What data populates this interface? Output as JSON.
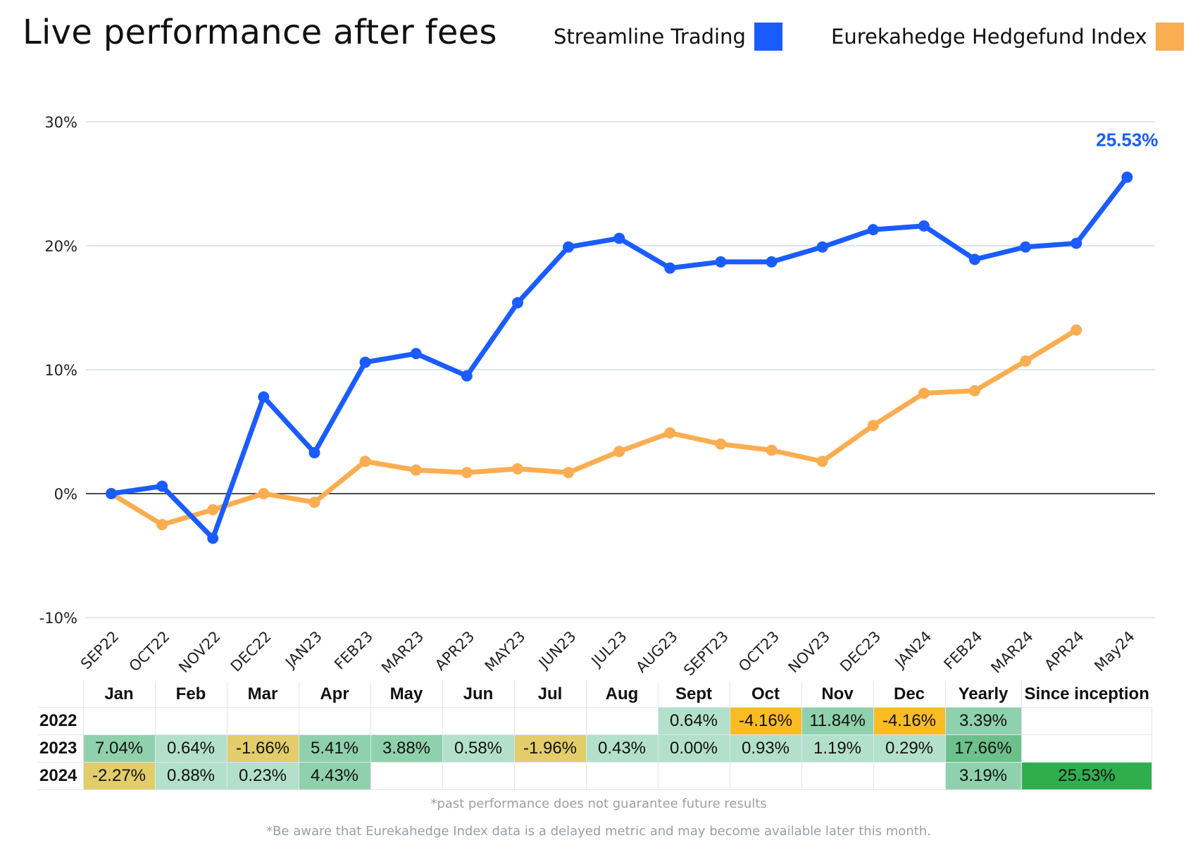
{
  "header": {
    "title": "Live performance after fees"
  },
  "legend": [
    {
      "label": "Streamline Trading",
      "color": "#1a5cff"
    },
    {
      "label": "Eurekahedge Hedgefund Index",
      "color": "#fbad52"
    }
  ],
  "chart_data": {
    "type": "line",
    "title": "Live performance after fees",
    "x": [
      "SEP22",
      "OCT22",
      "NOV22",
      "DEC22",
      "JAN23",
      "FEB23",
      "MAR23",
      "APR23",
      "MAY23",
      "JUN23",
      "JUL23",
      "AUG23",
      "SEPT23",
      "OCT23",
      "NOV23",
      "DEC23",
      "JAN24",
      "FEB24",
      "MAR24",
      "APR24",
      "May24"
    ],
    "y_ticks": [
      "30%",
      "20%",
      "10%",
      "0%",
      "-10%"
    ],
    "y_tick_values": [
      30,
      20,
      10,
      0,
      -10
    ],
    "ylim": [
      -10,
      30
    ],
    "grid": true,
    "legend_position": "top-right",
    "series": [
      {
        "name": "Streamline Trading",
        "color": "#1a5cff",
        "values": [
          0,
          0.6,
          -3.6,
          7.8,
          3.3,
          10.6,
          11.3,
          9.5,
          15.4,
          19.9,
          20.6,
          18.2,
          18.7,
          18.7,
          19.9,
          21.3,
          21.6,
          18.9,
          19.9,
          20.2,
          25.53
        ]
      },
      {
        "name": "Eurekahedge Hedgefund Index",
        "color": "#fbad52",
        "values": [
          0,
          -2.5,
          -1.3,
          0.0,
          -0.7,
          2.6,
          1.9,
          1.7,
          2.0,
          1.7,
          3.4,
          4.9,
          4.0,
          3.5,
          2.6,
          5.5,
          8.1,
          8.3,
          10.7,
          13.2,
          null
        ]
      }
    ],
    "annotation": {
      "text": "25.53%",
      "color": "#1a5cff"
    }
  },
  "table": {
    "headers": [
      "Jan",
      "Feb",
      "Mar",
      "Apr",
      "May",
      "Jun",
      "Jul",
      "Aug",
      "Sept",
      "Oct",
      "Nov",
      "Dec",
      "Yearly",
      "Since inception"
    ],
    "rows": [
      {
        "year": "2022",
        "cells": [
          "",
          "",
          "",
          "",
          "",
          "",
          "",
          "",
          "0.64%",
          "-4.16%",
          "11.84%",
          "-4.16%",
          "3.39%",
          ""
        ]
      },
      {
        "year": "2023",
        "cells": [
          "7.04%",
          "0.64%",
          "-1.66%",
          "5.41%",
          "3.88%",
          "0.58%",
          "-1.96%",
          "0.43%",
          "0.00%",
          "0.93%",
          "1.19%",
          "0.29%",
          "17.66%",
          ""
        ]
      },
      {
        "year": "2024",
        "cells": [
          "-2.27%",
          "0.88%",
          "0.23%",
          "4.43%",
          "",
          "",
          "",
          "",
          "",
          "",
          "",
          "",
          "3.19%",
          "25.53%"
        ]
      }
    ],
    "colors": {
      "light_green": "#b3e0cb",
      "mid_green": "#8fd1ac",
      "strong_green": "#6cc089",
      "bright_green": "#2fae4d",
      "yellow": "#e2cd6a",
      "orange": "#fbbb23"
    }
  },
  "notes": {
    "disclaimer": "*past performance does not guarantee future results",
    "delay": "*Be aware that Eurekahedge Index data is a delayed metric and may become available later this month."
  }
}
